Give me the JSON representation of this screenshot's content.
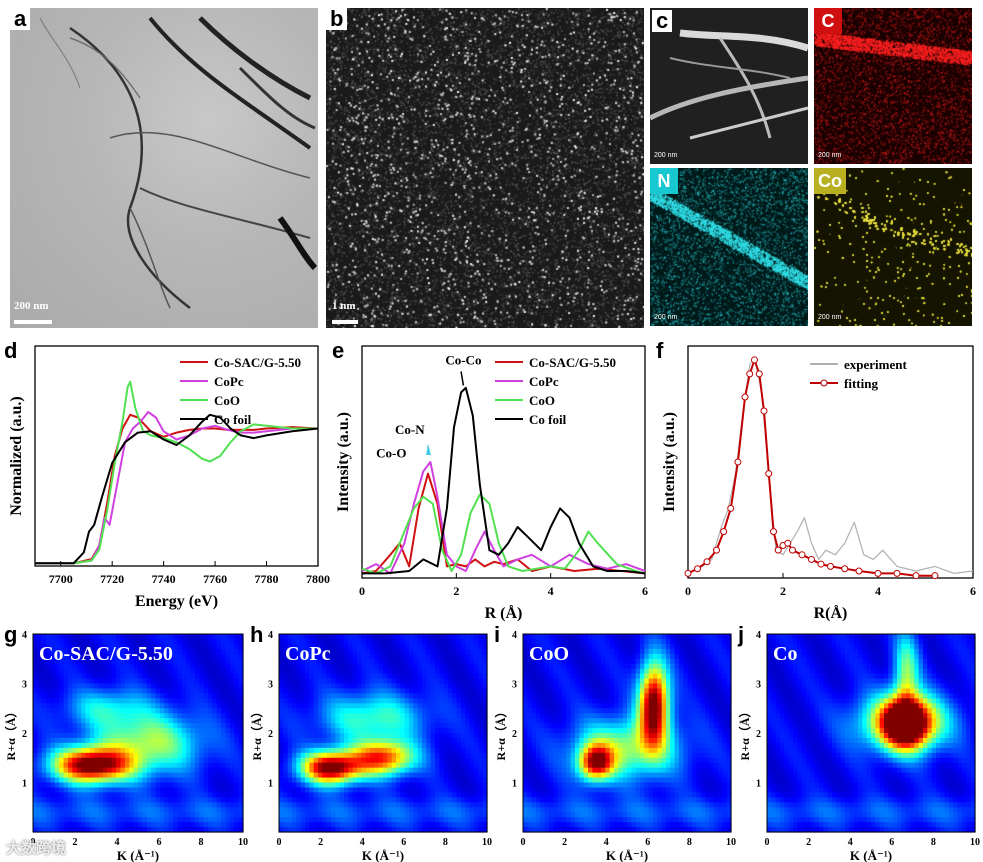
{
  "panels": {
    "a": {
      "label": "a",
      "scale": "200 nm"
    },
    "b": {
      "label": "b",
      "scale": "1 nm"
    },
    "c": {
      "label": "c",
      "scale": "200 nm",
      "maps": [
        {
          "name": "C",
          "color": "#e01010"
        },
        {
          "name": "N",
          "color": "#18c8d0"
        },
        {
          "name": "Co",
          "color": "#c8c020"
        }
      ]
    },
    "d": {
      "label": "d"
    },
    "e": {
      "label": "e"
    },
    "f": {
      "label": "f"
    },
    "g": {
      "label": "g",
      "title": "Co-SAC/G-5.50"
    },
    "h": {
      "label": "h",
      "title": "CoPc"
    },
    "i": {
      "label": "i",
      "title": "CoO"
    },
    "j": {
      "label": "j",
      "title": "Co"
    }
  },
  "colors": {
    "cosac": "#d01010",
    "copc": "#d040e0",
    "coo": "#50e050",
    "cofoil": "#000000",
    "fit": "#c00000",
    "exp": "#b0b0b0"
  },
  "chart_data": [
    {
      "id": "d",
      "type": "line",
      "xlabel": "Energy (eV)",
      "ylabel": "Normalized (a.u.)",
      "xlim": [
        7690,
        7800
      ],
      "ylim": [
        0,
        1.6
      ],
      "xticks": [
        7700,
        7720,
        7740,
        7760,
        7780,
        7800
      ],
      "legend": [
        "Co-SAC/G-5.50",
        "CoPc",
        "CoO",
        "Co foil"
      ],
      "series": [
        {
          "name": "Co-SAC/G-5.50",
          "x": [
            7690,
            7705,
            7712,
            7715,
            7718,
            7721,
            7724,
            7727,
            7730,
            7735,
            7740,
            7745,
            7750,
            7755,
            7760,
            7765,
            7770,
            7775,
            7780,
            7790,
            7800
          ],
          "y": [
            0.02,
            0.02,
            0.05,
            0.15,
            0.45,
            0.8,
            1.0,
            1.1,
            1.08,
            0.98,
            0.94,
            0.97,
            0.99,
            1.0,
            1.0,
            0.99,
            0.99,
            0.99,
            1.0,
            1.01,
            1.0
          ]
        },
        {
          "name": "CoPc",
          "x": [
            7690,
            7705,
            7712,
            7715,
            7717,
            7719,
            7722,
            7725,
            7728,
            7731,
            7734,
            7737,
            7740,
            7745,
            7750,
            7755,
            7760,
            7765,
            7770,
            7775,
            7780,
            7790,
            7800
          ],
          "y": [
            0.02,
            0.02,
            0.04,
            0.15,
            0.35,
            0.3,
            0.6,
            0.9,
            1.0,
            1.05,
            1.12,
            1.08,
            0.98,
            0.92,
            0.95,
            1.0,
            1.02,
            0.99,
            0.97,
            0.97,
            0.98,
            1.0,
            1.0
          ]
        },
        {
          "name": "CoO",
          "x": [
            7690,
            7705,
            7712,
            7715,
            7718,
            7721,
            7724,
            7726,
            7727,
            7729,
            7732,
            7735,
            7740,
            7745,
            7750,
            7755,
            7758,
            7762,
            7766,
            7770,
            7775,
            7780,
            7790,
            7800
          ],
          "y": [
            0.02,
            0.02,
            0.04,
            0.12,
            0.4,
            0.75,
            1.05,
            1.3,
            1.34,
            1.15,
            0.98,
            0.95,
            0.93,
            0.9,
            0.85,
            0.78,
            0.76,
            0.8,
            0.9,
            0.98,
            1.03,
            1.02,
            1.0,
            1.0
          ]
        },
        {
          "name": "Co foil",
          "x": [
            7690,
            7705,
            7709,
            7711,
            7713,
            7716,
            7720,
            7725,
            7730,
            7735,
            7740,
            7745,
            7750,
            7755,
            7758,
            7762,
            7766,
            7770,
            7775,
            7780,
            7790,
            7800
          ],
          "y": [
            0.02,
            0.02,
            0.1,
            0.25,
            0.3,
            0.5,
            0.75,
            0.9,
            0.97,
            0.98,
            0.92,
            0.88,
            0.95,
            1.05,
            1.1,
            1.08,
            1.0,
            0.95,
            0.93,
            0.95,
            0.98,
            1.0
          ]
        }
      ]
    },
    {
      "id": "e",
      "type": "line",
      "xlabel": "R (Å)",
      "ylabel": "Intensity (a.u.)",
      "xlim": [
        0,
        6
      ],
      "ylim": [
        0,
        1.0
      ],
      "xticks": [
        0,
        2,
        4,
        6
      ],
      "legend": [
        "Co-SAC/G-5.50",
        "CoPc",
        "CoO",
        "Co foil"
      ],
      "annotations": [
        "Co-Co",
        "Co-N",
        "Co-O"
      ],
      "series": [
        {
          "name": "Co-SAC/G-5.50",
          "x": [
            0,
            0.3,
            0.6,
            0.8,
            1.0,
            1.2,
            1.4,
            1.6,
            1.8,
            2.0,
            2.2,
            2.4,
            2.6,
            2.8,
            3.0,
            3.3,
            3.6,
            4.0,
            4.5,
            5.0,
            5.5,
            6.0
          ],
          "y": [
            0.02,
            0.03,
            0.1,
            0.15,
            0.05,
            0.3,
            0.45,
            0.32,
            0.05,
            0.06,
            0.05,
            0.08,
            0.05,
            0.07,
            0.06,
            0.08,
            0.03,
            0.05,
            0.03,
            0.04,
            0.03,
            0.02
          ]
        },
        {
          "name": "CoPc",
          "x": [
            0,
            0.3,
            0.6,
            0.9,
            1.1,
            1.3,
            1.45,
            1.6,
            1.8,
            2.0,
            2.2,
            2.4,
            2.6,
            2.8,
            3.0,
            3.3,
            3.6,
            4.0,
            4.4,
            4.8,
            5.2,
            5.6,
            6.0
          ],
          "y": [
            0.03,
            0.06,
            0.02,
            0.15,
            0.32,
            0.46,
            0.5,
            0.35,
            0.1,
            0.05,
            0.03,
            0.12,
            0.2,
            0.12,
            0.05,
            0.08,
            0.1,
            0.05,
            0.1,
            0.06,
            0.04,
            0.06,
            0.03
          ]
        },
        {
          "name": "CoO",
          "x": [
            0,
            0.3,
            0.6,
            0.9,
            1.1,
            1.3,
            1.5,
            1.7,
            1.9,
            2.1,
            2.3,
            2.5,
            2.7,
            2.9,
            3.1,
            3.4,
            3.7,
            4.0,
            4.3,
            4.6,
            4.8,
            5.0,
            5.4,
            5.8,
            6.0
          ],
          "y": [
            0.04,
            0.02,
            0.05,
            0.2,
            0.3,
            0.35,
            0.32,
            0.12,
            0.03,
            0.1,
            0.28,
            0.36,
            0.32,
            0.15,
            0.05,
            0.03,
            0.04,
            0.05,
            0.04,
            0.12,
            0.2,
            0.15,
            0.06,
            0.03,
            0.02
          ]
        },
        {
          "name": "Co foil",
          "x": [
            0,
            0.5,
            1.0,
            1.3,
            1.6,
            1.8,
            1.95,
            2.1,
            2.2,
            2.35,
            2.5,
            2.7,
            2.9,
            3.1,
            3.3,
            3.5,
            3.8,
            4.0,
            4.2,
            4.4,
            4.6,
            4.9,
            5.2,
            5.6,
            6.0
          ],
          "y": [
            0.02,
            0.02,
            0.03,
            0.08,
            0.05,
            0.3,
            0.65,
            0.8,
            0.82,
            0.7,
            0.4,
            0.12,
            0.1,
            0.15,
            0.22,
            0.18,
            0.12,
            0.22,
            0.3,
            0.26,
            0.15,
            0.05,
            0.03,
            0.03,
            0.02
          ]
        }
      ]
    },
    {
      "id": "f",
      "type": "line",
      "xlabel": "R(Å)",
      "ylabel": "Intensity (a.u.)",
      "xlim": [
        0,
        6
      ],
      "ylim": [
        0,
        1.0
      ],
      "xticks": [
        0,
        2,
        4,
        6
      ],
      "legend": [
        "experiment",
        "fitting"
      ],
      "series": [
        {
          "name": "experiment",
          "x": [
            0,
            0.3,
            0.5,
            0.7,
            0.85,
            1.0,
            1.15,
            1.3,
            1.4,
            1.55,
            1.7,
            1.85,
            2.0,
            2.15,
            2.3,
            2.45,
            2.6,
            2.75,
            2.9,
            3.1,
            3.3,
            3.5,
            3.7,
            3.9,
            4.1,
            4.4,
            4.8,
            5.2,
            5.6,
            6.0
          ],
          "y": [
            0.02,
            0.05,
            0.08,
            0.22,
            0.3,
            0.45,
            0.7,
            0.92,
            0.95,
            0.8,
            0.45,
            0.12,
            0.1,
            0.15,
            0.2,
            0.26,
            0.15,
            0.08,
            0.12,
            0.1,
            0.15,
            0.24,
            0.1,
            0.08,
            0.12,
            0.05,
            0.03,
            0.05,
            0.02,
            0.03
          ]
        },
        {
          "name": "fitting",
          "x": [
            0,
            0.2,
            0.4,
            0.6,
            0.75,
            0.9,
            1.05,
            1.2,
            1.3,
            1.4,
            1.5,
            1.6,
            1.7,
            1.8,
            1.9,
            2.0,
            2.1,
            2.2,
            2.4,
            2.6,
            2.8,
            3.0,
            3.3,
            3.6,
            4.0,
            4.4,
            4.8,
            5.2
          ],
          "y": [
            0.02,
            0.04,
            0.07,
            0.12,
            0.2,
            0.3,
            0.5,
            0.78,
            0.88,
            0.94,
            0.88,
            0.72,
            0.45,
            0.2,
            0.12,
            0.14,
            0.15,
            0.12,
            0.1,
            0.08,
            0.06,
            0.05,
            0.04,
            0.03,
            0.02,
            0.02,
            0.01,
            0.01
          ]
        }
      ]
    },
    {
      "id": "g",
      "type": "heatmap",
      "xlabel": "K (Å⁻¹)",
      "ylabel": "R+α（Å）",
      "xlim": [
        0,
        10
      ],
      "ylim": [
        0,
        4
      ],
      "xticks": [
        0,
        2,
        4,
        6,
        8,
        10
      ],
      "yticks": [
        1,
        2,
        3,
        4
      ],
      "peaks": [
        {
          "k": 2.8,
          "r": 1.35,
          "sk": 1.8,
          "sr": 0.35,
          "amp": 1.0
        },
        {
          "k": 5.5,
          "r": 1.8,
          "sk": 2.5,
          "sr": 0.6,
          "amp": 0.45
        },
        {
          "k": 3.5,
          "r": 2.5,
          "sk": 2.0,
          "sr": 0.4,
          "amp": 0.25
        }
      ]
    },
    {
      "id": "h",
      "type": "heatmap",
      "xlabel": "K (Å⁻¹)",
      "ylabel": "R+α（Å）",
      "xlim": [
        0,
        10
      ],
      "ylim": [
        0,
        4
      ],
      "xticks": [
        0,
        2,
        4,
        6,
        8,
        10
      ],
      "yticks": [
        1,
        2,
        3,
        4
      ],
      "peaks": [
        {
          "k": 2.5,
          "r": 1.3,
          "sk": 1.4,
          "sr": 0.32,
          "amp": 1.0
        },
        {
          "k": 5.0,
          "r": 1.5,
          "sk": 1.5,
          "sr": 0.35,
          "amp": 0.75
        },
        {
          "k": 4.5,
          "r": 2.3,
          "sk": 2.5,
          "sr": 0.5,
          "amp": 0.35
        }
      ]
    },
    {
      "id": "i",
      "type": "heatmap",
      "xlabel": "K (Å⁻¹)",
      "ylabel": "R+α（Å）",
      "xlim": [
        0,
        10
      ],
      "ylim": [
        0,
        4
      ],
      "xticks": [
        0,
        2,
        4,
        6,
        8,
        10
      ],
      "yticks": [
        1,
        2,
        3,
        4
      ],
      "peaks": [
        {
          "k": 3.5,
          "r": 1.4,
          "sk": 0.8,
          "sr": 0.35,
          "amp": 0.8
        },
        {
          "k": 6.3,
          "r": 2.6,
          "sk": 0.7,
          "sr": 0.8,
          "amp": 1.0
        },
        {
          "k": 5.0,
          "r": 1.7,
          "sk": 2.5,
          "sr": 0.6,
          "amp": 0.45
        }
      ]
    },
    {
      "id": "j",
      "type": "heatmap",
      "xlabel": "K (Å⁻¹)",
      "ylabel": "R+α（Å）",
      "xlim": [
        0,
        10
      ],
      "ylim": [
        0,
        4
      ],
      "xticks": [
        0,
        2,
        4,
        6,
        8,
        10
      ],
      "yticks": [
        1,
        2,
        3,
        4
      ],
      "peaks": [
        {
          "k": 6.7,
          "r": 2.2,
          "sk": 1.1,
          "sr": 0.5,
          "amp": 1.0
        },
        {
          "k": 6.5,
          "r": 2.2,
          "sk": 2.2,
          "sr": 0.55,
          "amp": 0.55
        },
        {
          "k": 6.7,
          "r": 3.2,
          "sk": 0.6,
          "sr": 0.8,
          "amp": 0.4
        }
      ]
    }
  ],
  "watermark": "大数跨境"
}
